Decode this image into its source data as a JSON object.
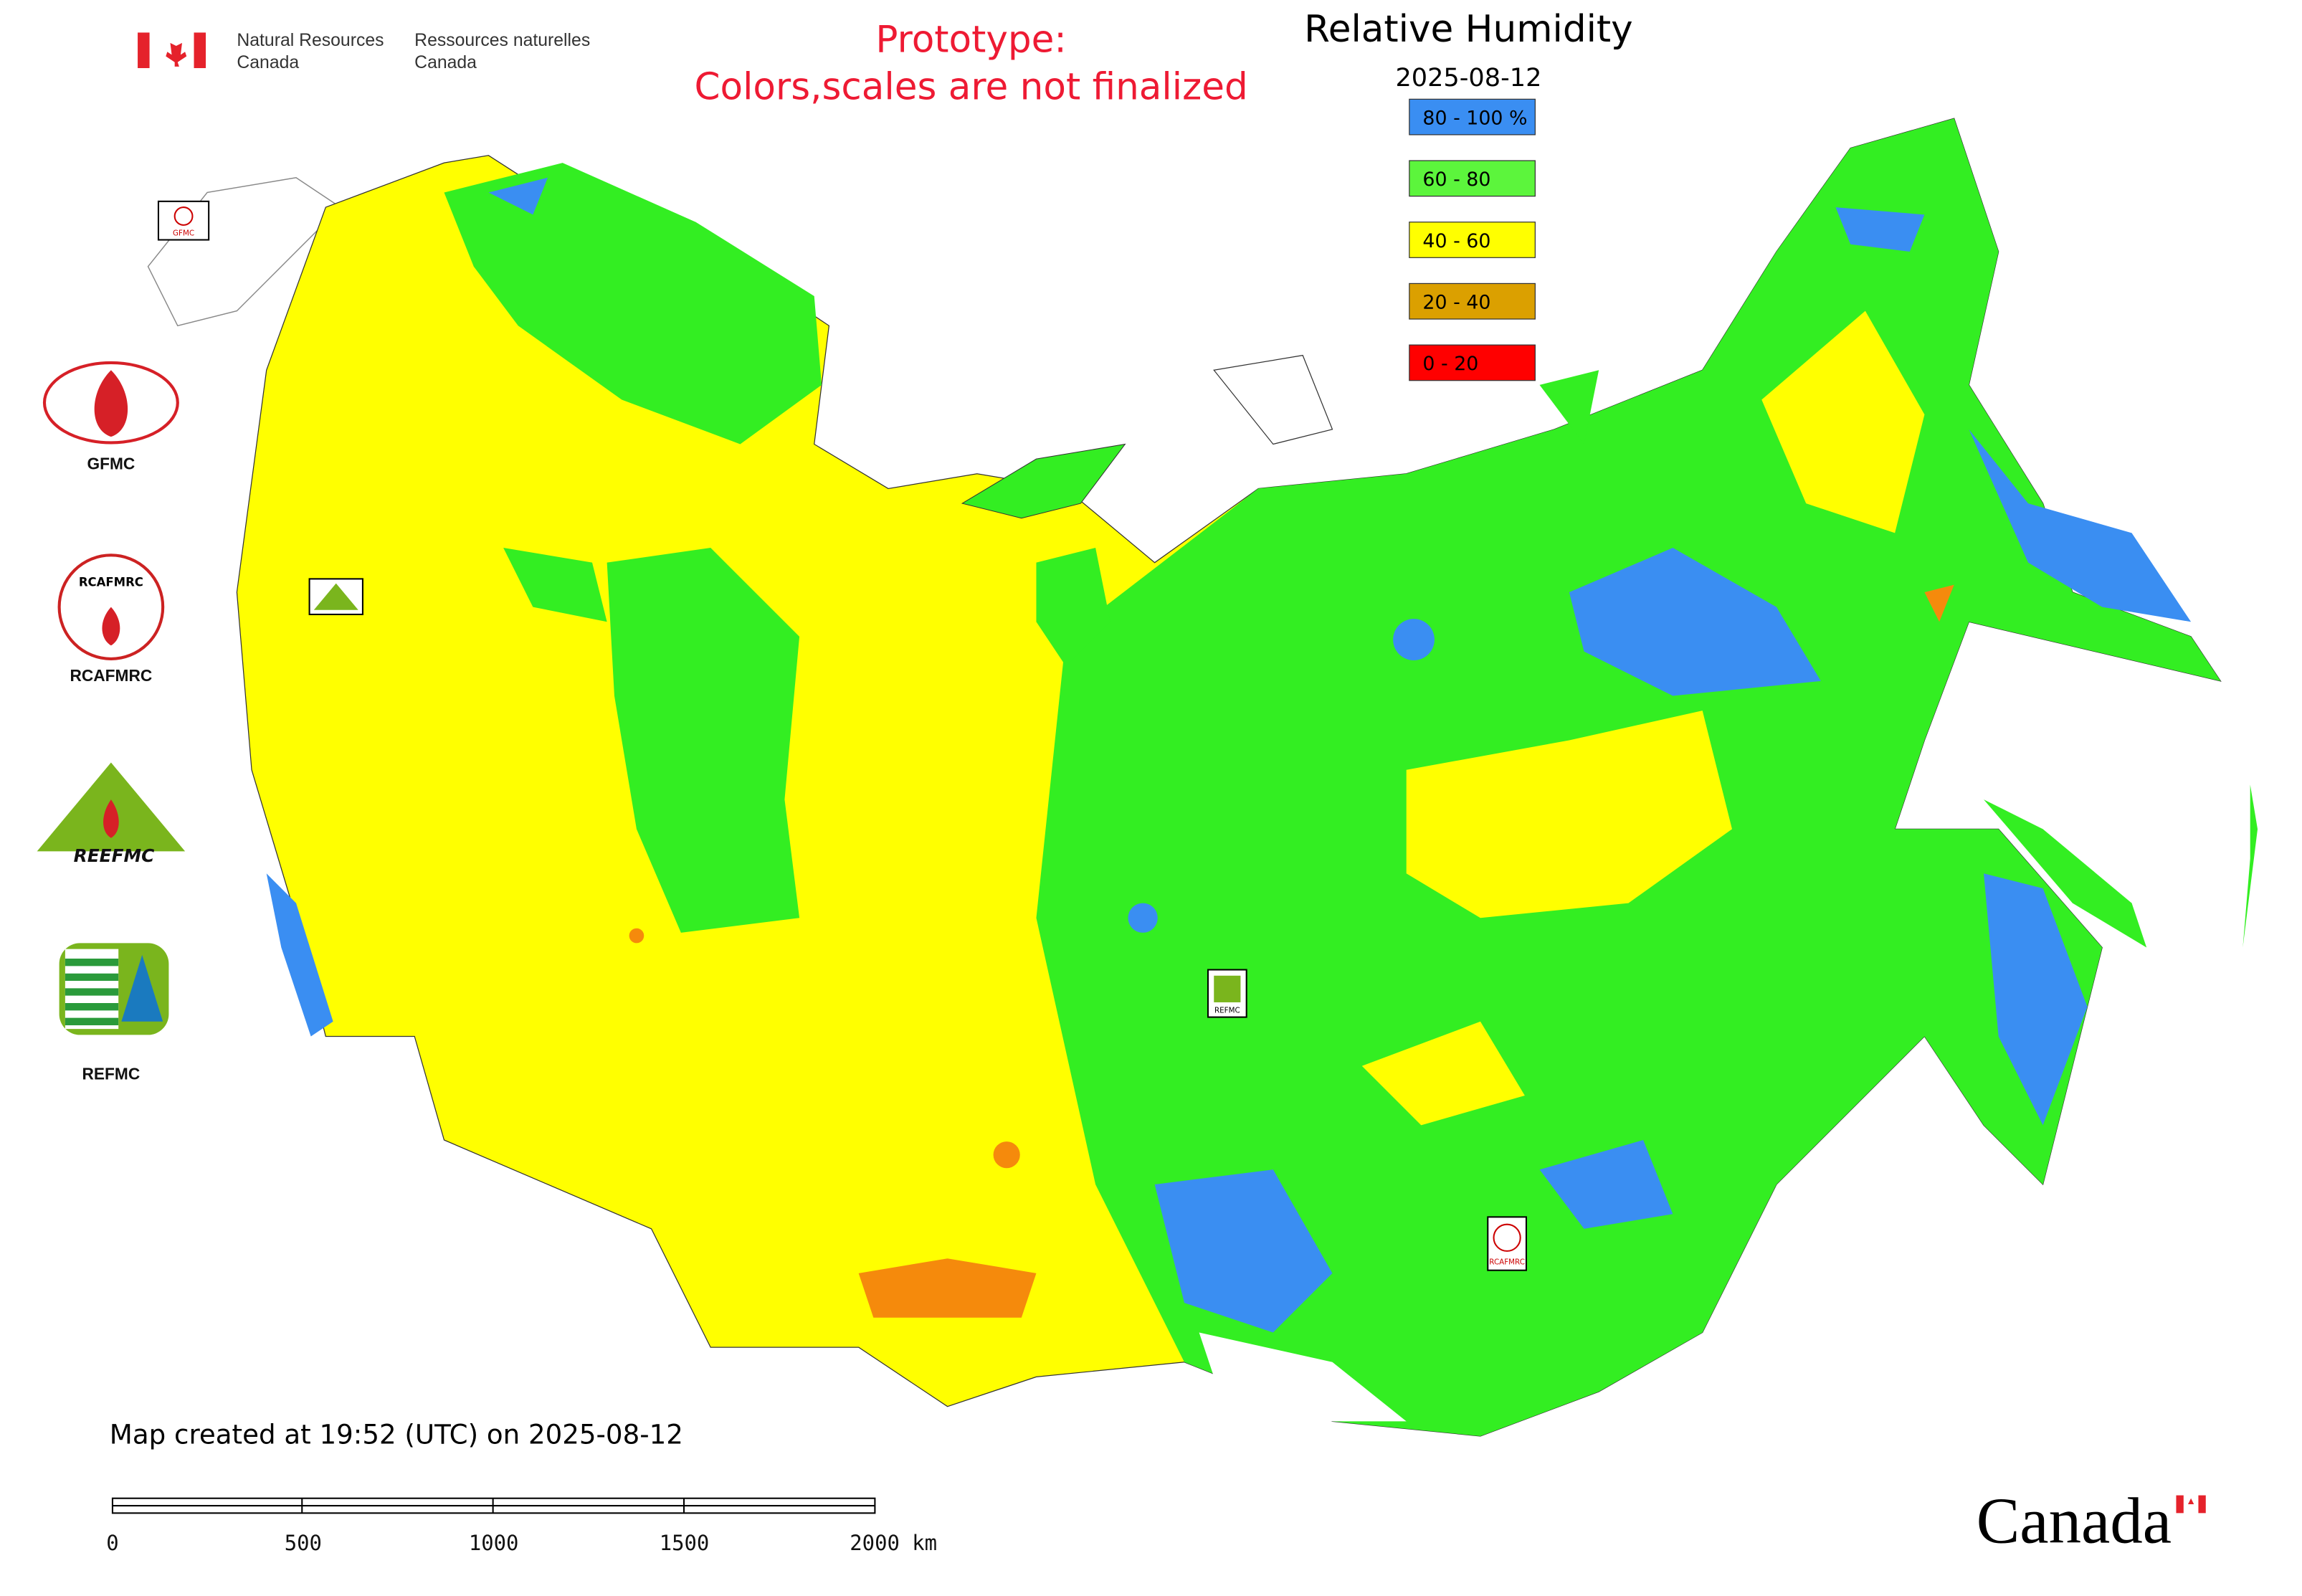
{
  "header": {
    "org_en": [
      "Natural Resources",
      "Canada"
    ],
    "org_fr": [
      "Ressources naturelles",
      "Canada"
    ],
    "notice": [
      "Prototype:",
      "Colors,scales are not finalized"
    ]
  },
  "legend": {
    "title": "Relative Humidity",
    "date": "2025-08-12",
    "items": [
      {
        "label": "80 - 100 %",
        "color": "#3a8ef2"
      },
      {
        "label": "60 - 80",
        "color": "#5cf53c"
      },
      {
        "label": "40 - 60",
        "color": "#ffff00"
      },
      {
        "label": "20 - 40",
        "color": "#dba000"
      },
      {
        "label": "0 - 20",
        "color": "#ff0000"
      }
    ]
  },
  "sidebar": {
    "labels": [
      "GFMC",
      "RCAFMRC",
      "REFMC"
    ],
    "logo_text": [
      "RCAFMRC",
      "REEFMC"
    ]
  },
  "map_markers": [
    "GFMC",
    "REFMC",
    "RCAFMRC"
  ],
  "footer": {
    "created": "Map created at 19:52 (UTC) on 2025-08-12",
    "scale_labels": [
      "0",
      "500",
      "1000",
      "1500",
      "2000 km"
    ],
    "wordmark": "Canada"
  }
}
